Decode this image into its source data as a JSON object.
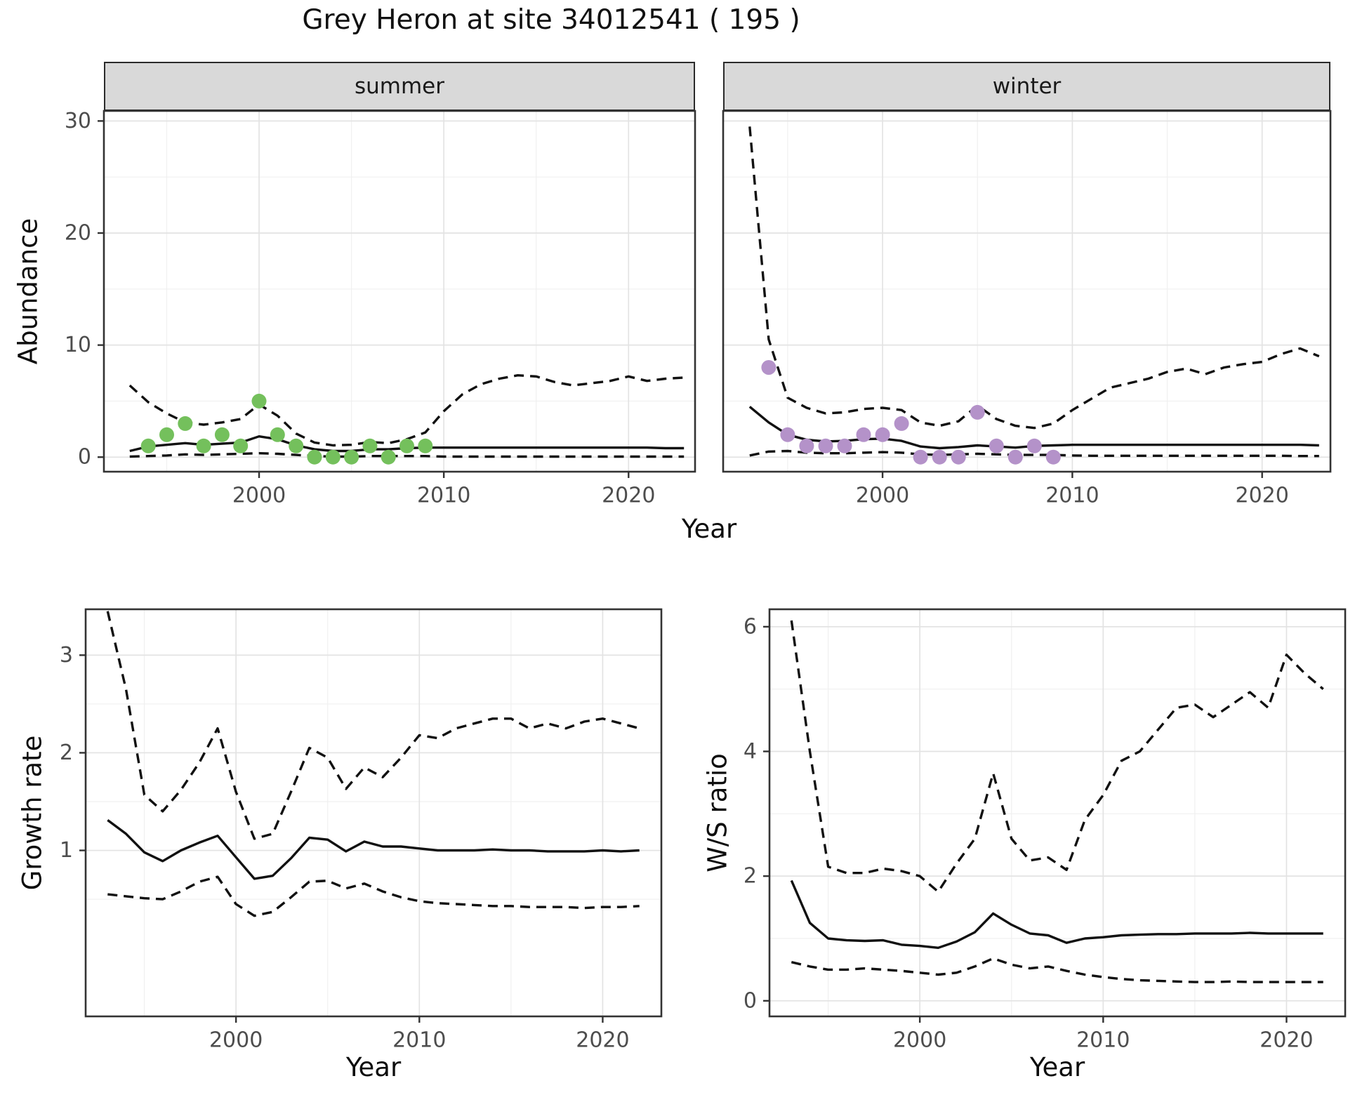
{
  "title": "Grey Heron at site 34012541 ( 195 )",
  "colors": {
    "summer_points": "#74c05c",
    "winter_points": "#b492c9",
    "line": "#111111",
    "panel_border": "#333333",
    "grid_major": "#e3e3e3",
    "grid_minor": "#f0f0f0",
    "tick_text": "#4d4d4d",
    "strip_bg": "#d9d9d9"
  },
  "chart_data": [
    {
      "id": "abundance_summer",
      "type": "line",
      "facet_label": "summer",
      "ylabel": "Abundance",
      "xlabel": "Year",
      "xlim": [
        1991.6,
        2023.6
      ],
      "ylim": [
        -1.3,
        30.9
      ],
      "xticks": [
        2000,
        2010,
        2020
      ],
      "xminor": [
        1995,
        2005,
        2015
      ],
      "yticks": [
        0,
        10,
        20,
        30
      ],
      "yminor": [
        5,
        15,
        25
      ],
      "grid": true,
      "legend": "none",
      "years": [
        1993,
        1994,
        1995,
        1996,
        1997,
        1998,
        1999,
        2000,
        2001,
        2002,
        2003,
        2004,
        2005,
        2006,
        2007,
        2008,
        2009,
        2010,
        2011,
        2012,
        2013,
        2014,
        2015,
        2016,
        2017,
        2018,
        2019,
        2020,
        2021,
        2022,
        2023
      ],
      "series": [
        {
          "name": "lower_ci",
          "style": "dashed",
          "values": [
            0.05,
            0.1,
            0.15,
            0.25,
            0.2,
            0.25,
            0.3,
            0.35,
            0.3,
            0.2,
            0.1,
            0.05,
            0.05,
            0.1,
            0.1,
            0.1,
            0.1,
            0.05,
            0.05,
            0.05,
            0.05,
            0.05,
            0.05,
            0.05,
            0.05,
            0.05,
            0.05,
            0.05,
            0.05,
            0.05,
            0.05
          ]
        },
        {
          "name": "upper_ci",
          "style": "dashed",
          "values": [
            6.4,
            4.9,
            3.9,
            3.1,
            2.9,
            3.1,
            3.4,
            4.7,
            3.7,
            2.1,
            1.3,
            1.05,
            1.1,
            1.35,
            1.25,
            1.6,
            2.2,
            4.1,
            5.6,
            6.5,
            7.0,
            7.3,
            7.2,
            6.7,
            6.4,
            6.6,
            6.8,
            7.2,
            6.8,
            7.0,
            7.1
          ]
        },
        {
          "name": "mean",
          "style": "solid",
          "values": [
            0.55,
            0.95,
            1.1,
            1.25,
            1.1,
            1.2,
            1.3,
            1.85,
            1.6,
            1.05,
            0.7,
            0.55,
            0.55,
            0.7,
            0.7,
            0.8,
            0.85,
            0.85,
            0.85,
            0.85,
            0.85,
            0.85,
            0.85,
            0.85,
            0.85,
            0.85,
            0.85,
            0.85,
            0.85,
            0.8,
            0.8
          ]
        }
      ],
      "points": {
        "name": "observed_abundance",
        "color": "#74c05c",
        "years": [
          1994,
          1995,
          1996,
          1997,
          1998,
          1999,
          2000,
          2001,
          2002,
          2003,
          2004,
          2005,
          2006,
          2007,
          2008,
          2009
        ],
        "values": [
          1,
          2,
          3,
          1,
          2,
          1,
          5,
          2,
          1,
          0,
          0,
          0,
          1,
          0,
          1,
          1
        ]
      }
    },
    {
      "id": "abundance_winter",
      "type": "line",
      "facet_label": "winter",
      "ylabel": "",
      "xlabel": "Year",
      "xlim": [
        1991.6,
        2023.6
      ],
      "ylim": [
        -1.3,
        30.9
      ],
      "xticks": [
        2000,
        2010,
        2020
      ],
      "xminor": [
        1995,
        2005,
        2015
      ],
      "yticks": [
        0,
        10,
        20,
        30
      ],
      "yminor": [
        5,
        15,
        25
      ],
      "grid": true,
      "legend": "none",
      "years": [
        1993,
        1994,
        1995,
        1996,
        1997,
        1998,
        1999,
        2000,
        2001,
        2002,
        2003,
        2004,
        2005,
        2006,
        2007,
        2008,
        2009,
        2010,
        2011,
        2012,
        2013,
        2014,
        2015,
        2016,
        2017,
        2018,
        2019,
        2020,
        2021,
        2022,
        2023
      ],
      "series": [
        {
          "name": "lower_ci",
          "style": "dashed",
          "values": [
            0.15,
            0.5,
            0.55,
            0.4,
            0.35,
            0.35,
            0.4,
            0.45,
            0.4,
            0.25,
            0.2,
            0.25,
            0.3,
            0.25,
            0.2,
            0.2,
            0.2,
            0.15,
            0.12,
            0.12,
            0.12,
            0.12,
            0.12,
            0.12,
            0.12,
            0.12,
            0.12,
            0.12,
            0.12,
            0.1,
            0.1
          ]
        },
        {
          "name": "upper_ci",
          "style": "dashed",
          "values": [
            29.5,
            10.5,
            5.3,
            4.4,
            3.9,
            4.0,
            4.3,
            4.4,
            4.2,
            3.1,
            2.8,
            3.2,
            4.6,
            3.4,
            2.8,
            2.6,
            3.0,
            4.2,
            5.2,
            6.2,
            6.6,
            7.0,
            7.6,
            7.9,
            7.4,
            8.0,
            8.3,
            8.5,
            9.2,
            9.7,
            9.0
          ]
        },
        {
          "name": "mean",
          "style": "solid",
          "values": [
            4.5,
            3.1,
            2.0,
            1.55,
            1.4,
            1.45,
            1.6,
            1.65,
            1.45,
            0.95,
            0.8,
            0.9,
            1.05,
            0.95,
            0.85,
            1.0,
            1.05,
            1.1,
            1.1,
            1.1,
            1.1,
            1.1,
            1.1,
            1.1,
            1.1,
            1.1,
            1.1,
            1.1,
            1.1,
            1.1,
            1.05
          ]
        }
      ],
      "points": {
        "name": "observed_abundance",
        "color": "#b492c9",
        "years": [
          1994,
          1995,
          1996,
          1997,
          1998,
          1999,
          2000,
          2001,
          2002,
          2003,
          2004,
          2005,
          2006,
          2007,
          2008,
          2009
        ],
        "values": [
          8,
          2,
          1,
          1,
          1,
          2,
          2,
          3,
          0,
          0,
          0,
          4,
          1,
          0,
          1,
          0
        ]
      }
    },
    {
      "id": "growth_rate",
      "type": "line",
      "facet_label": "",
      "ylabel": "Growth rate",
      "xlabel": "Year",
      "xlim": [
        1991.8,
        2023.2
      ],
      "ylim": [
        -0.7,
        3.47
      ],
      "xticks": [
        2000,
        2010,
        2020
      ],
      "xminor": [
        1995,
        2005,
        2015
      ],
      "yticks": [
        1,
        2,
        3
      ],
      "yminor": [
        0.5,
        1.5,
        2.5
      ],
      "grid": true,
      "legend": "none",
      "years": [
        1993,
        1994,
        1995,
        1996,
        1997,
        1998,
        1999,
        2000,
        2001,
        2002,
        2003,
        2004,
        2005,
        2006,
        2007,
        2008,
        2009,
        2010,
        2011,
        2012,
        2013,
        2014,
        2015,
        2016,
        2017,
        2018,
        2019,
        2020,
        2021,
        2022
      ],
      "series": [
        {
          "name": "lower_ci",
          "style": "dashed",
          "values": [
            0.55,
            0.53,
            0.51,
            0.5,
            0.58,
            0.68,
            0.73,
            0.45,
            0.33,
            0.37,
            0.52,
            0.68,
            0.69,
            0.61,
            0.66,
            0.58,
            0.52,
            0.48,
            0.46,
            0.45,
            0.44,
            0.43,
            0.43,
            0.42,
            0.42,
            0.42,
            0.41,
            0.42,
            0.42,
            0.43
          ]
        },
        {
          "name": "upper_ci",
          "style": "dashed",
          "values": [
            3.45,
            2.65,
            1.57,
            1.4,
            1.62,
            1.9,
            2.25,
            1.6,
            1.12,
            1.17,
            1.6,
            2.05,
            1.95,
            1.63,
            1.85,
            1.75,
            1.95,
            2.18,
            2.15,
            2.25,
            2.3,
            2.35,
            2.35,
            2.25,
            2.3,
            2.25,
            2.32,
            2.35,
            2.3,
            2.25
          ]
        },
        {
          "name": "mean",
          "style": "solid",
          "values": [
            1.31,
            1.17,
            0.98,
            0.89,
            1.0,
            1.08,
            1.15,
            0.93,
            0.71,
            0.74,
            0.92,
            1.13,
            1.11,
            0.99,
            1.09,
            1.04,
            1.04,
            1.02,
            1.0,
            1.0,
            1.0,
            1.01,
            1.0,
            1.0,
            0.99,
            0.99,
            0.99,
            1.0,
            0.99,
            1.0
          ]
        }
      ],
      "points": null
    },
    {
      "id": "ws_ratio",
      "type": "line",
      "facet_label": "",
      "ylabel": "W/S ratio",
      "xlabel": "Year",
      "xlim": [
        1991.8,
        2023.2
      ],
      "ylim": [
        -0.25,
        6.28
      ],
      "xticks": [
        2000,
        2010,
        2020
      ],
      "xminor": [
        1995,
        2005,
        2015
      ],
      "yticks": [
        0,
        2,
        4,
        6
      ],
      "yminor": [
        1,
        3,
        5
      ],
      "grid": true,
      "legend": "none",
      "years": [
        1993,
        1994,
        1995,
        1996,
        1997,
        1998,
        1999,
        2000,
        2001,
        2002,
        2003,
        2004,
        2005,
        2006,
        2007,
        2008,
        2009,
        2010,
        2011,
        2012,
        2013,
        2014,
        2015,
        2016,
        2017,
        2018,
        2019,
        2020,
        2021,
        2022
      ],
      "series": [
        {
          "name": "lower_ci",
          "style": "dashed",
          "values": [
            0.62,
            0.55,
            0.5,
            0.5,
            0.52,
            0.5,
            0.48,
            0.45,
            0.42,
            0.45,
            0.55,
            0.68,
            0.58,
            0.52,
            0.55,
            0.48,
            0.42,
            0.38,
            0.35,
            0.33,
            0.32,
            0.31,
            0.3,
            0.3,
            0.31,
            0.3,
            0.3,
            0.3,
            0.3,
            0.3
          ]
        },
        {
          "name": "upper_ci",
          "style": "dashed",
          "values": [
            6.1,
            4.0,
            2.15,
            2.05,
            2.05,
            2.12,
            2.08,
            2.0,
            1.75,
            2.2,
            2.6,
            3.65,
            2.6,
            2.25,
            2.3,
            2.1,
            2.9,
            3.3,
            3.85,
            4.0,
            4.35,
            4.7,
            4.75,
            4.55,
            4.75,
            4.95,
            4.7,
            5.55,
            5.25,
            5.0
          ]
        },
        {
          "name": "mean",
          "style": "solid",
          "values": [
            1.93,
            1.25,
            1.0,
            0.97,
            0.96,
            0.97,
            0.9,
            0.88,
            0.85,
            0.95,
            1.1,
            1.4,
            1.22,
            1.08,
            1.05,
            0.93,
            1.0,
            1.02,
            1.05,
            1.06,
            1.07,
            1.07,
            1.08,
            1.08,
            1.08,
            1.09,
            1.08,
            1.08,
            1.08,
            1.08
          ]
        }
      ],
      "points": null
    }
  ]
}
